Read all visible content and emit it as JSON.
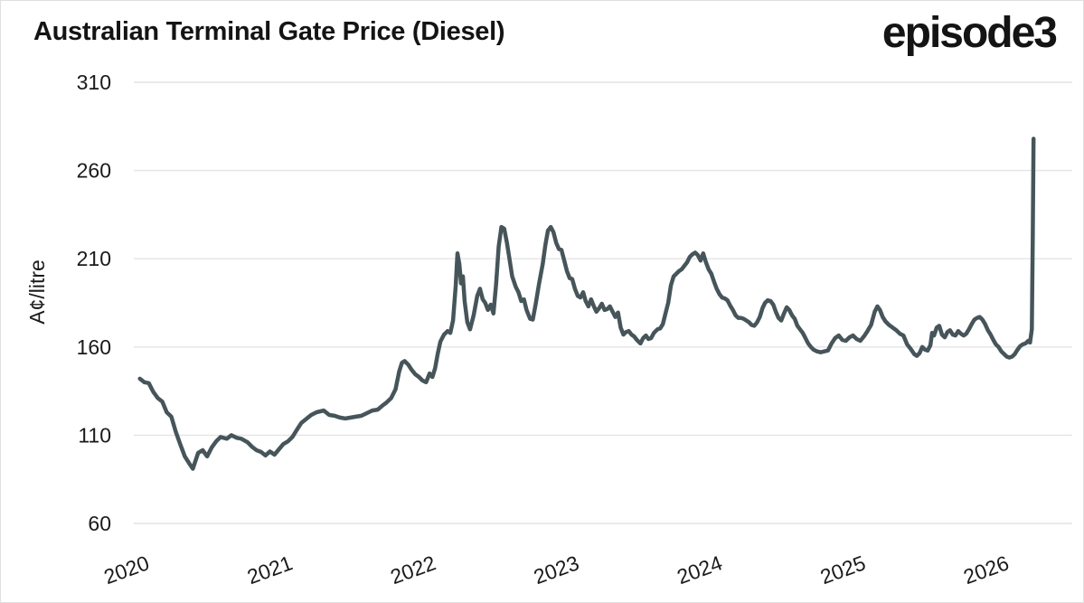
{
  "header": {
    "title": "Australian Terminal Gate Price (Diesel)",
    "logo": "episode3"
  },
  "chart_data": {
    "type": "line",
    "title": "Australian Terminal Gate Price (Diesel)",
    "xlabel": "",
    "ylabel": "A¢/litre",
    "x_ticks": [
      2020,
      2021,
      2022,
      2023,
      2024,
      2025,
      2026
    ],
    "y_ticks": [
      310,
      260,
      210,
      160,
      110,
      60
    ],
    "ylim": [
      60,
      310
    ],
    "xlim": [
      2019.92,
      2026.47
    ],
    "grid": "horizontal",
    "legend": "none",
    "line_color": "#46555a",
    "grid_color": "#e4e4e4",
    "text_color": "#1a1a1a",
    "points": [
      [
        2019.962,
        142
      ],
      [
        2019.994,
        140
      ],
      [
        2020.025,
        139.5
      ],
      [
        2020.056,
        134.5
      ],
      [
        2020.088,
        131
      ],
      [
        2020.119,
        129
      ],
      [
        2020.15,
        123
      ],
      [
        2020.182,
        120.5
      ],
      [
        2020.213,
        112
      ],
      [
        2020.244,
        105
      ],
      [
        2020.276,
        98
      ],
      [
        2020.307,
        94
      ],
      [
        2020.332,
        91
      ],
      [
        2020.369,
        100
      ],
      [
        2020.401,
        101.5
      ],
      [
        2020.432,
        98
      ],
      [
        2020.463,
        103
      ],
      [
        2020.495,
        106.5
      ],
      [
        2020.526,
        109
      ],
      [
        2020.57,
        108
      ],
      [
        2020.601,
        110
      ],
      [
        2020.639,
        108.5
      ],
      [
        2020.67,
        108
      ],
      [
        2020.714,
        106
      ],
      [
        2020.745,
        103.5
      ],
      [
        2020.776,
        101.5
      ],
      [
        2020.808,
        100.5
      ],
      [
        2020.839,
        98.5
      ],
      [
        2020.87,
        100.8
      ],
      [
        2020.902,
        99
      ],
      [
        2020.933,
        102
      ],
      [
        2020.964,
        105
      ],
      [
        2020.996,
        106.5
      ],
      [
        2021.027,
        109
      ],
      [
        2021.058,
        113
      ],
      [
        2021.09,
        117
      ],
      [
        2021.121,
        119
      ],
      [
        2021.158,
        121.5
      ],
      [
        2021.196,
        123
      ],
      [
        2021.246,
        124
      ],
      [
        2021.284,
        121.5
      ],
      [
        2021.321,
        121
      ],
      [
        2021.359,
        120
      ],
      [
        2021.396,
        119.5
      ],
      [
        2021.434,
        120
      ],
      [
        2021.471,
        120.5
      ],
      [
        2021.509,
        121
      ],
      [
        2021.547,
        122.5
      ],
      [
        2021.584,
        124
      ],
      [
        2021.622,
        124.5
      ],
      [
        2021.659,
        127
      ],
      [
        2021.684,
        128.5
      ],
      [
        2021.716,
        131
      ],
      [
        2021.747,
        136
      ],
      [
        2021.772,
        146
      ],
      [
        2021.791,
        151
      ],
      [
        2021.81,
        152
      ],
      [
        2021.835,
        150
      ],
      [
        2021.86,
        147
      ],
      [
        2021.885,
        144.5
      ],
      [
        2021.91,
        143
      ],
      [
        2021.935,
        141
      ],
      [
        2021.96,
        140
      ],
      [
        2021.985,
        145
      ],
      [
        2022.004,
        143
      ],
      [
        2022.023,
        148
      ],
      [
        2022.041,
        156
      ],
      [
        2022.06,
        163
      ],
      [
        2022.085,
        167
      ],
      [
        2022.11,
        169
      ],
      [
        2022.129,
        168
      ],
      [
        2022.148,
        175
      ],
      [
        2022.167,
        195
      ],
      [
        2022.179,
        213
      ],
      [
        2022.192,
        207
      ],
      [
        2022.204,
        196
      ],
      [
        2022.217,
        200
      ],
      [
        2022.229,
        186
      ],
      [
        2022.248,
        174
      ],
      [
        2022.267,
        170
      ],
      [
        2022.292,
        178
      ],
      [
        2022.317,
        189
      ],
      [
        2022.336,
        193
      ],
      [
        2022.355,
        187
      ],
      [
        2022.373,
        185
      ],
      [
        2022.392,
        181
      ],
      [
        2022.411,
        184
      ],
      [
        2022.43,
        179
      ],
      [
        2022.449,
        196
      ],
      [
        2022.467,
        217
      ],
      [
        2022.486,
        228
      ],
      [
        2022.505,
        227
      ],
      [
        2022.524,
        219
      ],
      [
        2022.542,
        210
      ],
      [
        2022.561,
        200
      ],
      [
        2022.586,
        194
      ],
      [
        2022.605,
        191
      ],
      [
        2022.624,
        186
      ],
      [
        2022.643,
        187
      ],
      [
        2022.661,
        181
      ],
      [
        2022.686,
        176
      ],
      [
        2022.705,
        175.5
      ],
      [
        2022.724,
        184
      ],
      [
        2022.749,
        196
      ],
      [
        2022.774,
        207
      ],
      [
        2022.793,
        218
      ],
      [
        2022.811,
        226
      ],
      [
        2022.83,
        228
      ],
      [
        2022.849,
        225
      ],
      [
        2022.868,
        219
      ],
      [
        2022.887,
        215.5
      ],
      [
        2022.905,
        215
      ],
      [
        2022.924,
        209
      ],
      [
        2022.943,
        203
      ],
      [
        2022.962,
        199
      ],
      [
        2022.98,
        198.5
      ],
      [
        2022.999,
        193
      ],
      [
        2023.018,
        189
      ],
      [
        2023.037,
        188
      ],
      [
        2023.056,
        191
      ],
      [
        2023.074,
        186
      ],
      [
        2023.093,
        183
      ],
      [
        2023.112,
        187
      ],
      [
        2023.131,
        183
      ],
      [
        2023.149,
        180
      ],
      [
        2023.168,
        182
      ],
      [
        2023.187,
        184.5
      ],
      [
        2023.206,
        181
      ],
      [
        2023.225,
        181.5
      ],
      [
        2023.243,
        183
      ],
      [
        2023.262,
        180
      ],
      [
        2023.281,
        177
      ],
      [
        2023.3,
        179.5
      ],
      [
        2023.318,
        171
      ],
      [
        2023.337,
        167
      ],
      [
        2023.356,
        168.5
      ],
      [
        2023.375,
        169
      ],
      [
        2023.394,
        167
      ],
      [
        2023.412,
        166
      ],
      [
        2023.431,
        164
      ],
      [
        2023.456,
        162
      ],
      [
        2023.475,
        165
      ],
      [
        2023.494,
        166.5
      ],
      [
        2023.512,
        164.5
      ],
      [
        2023.531,
        165
      ],
      [
        2023.55,
        168
      ],
      [
        2023.575,
        170
      ],
      [
        2023.594,
        170.5
      ],
      [
        2023.613,
        173
      ],
      [
        2023.631,
        179
      ],
      [
        2023.65,
        185
      ],
      [
        2023.669,
        195
      ],
      [
        2023.688,
        200
      ],
      [
        2023.707,
        201.5
      ],
      [
        2023.725,
        203
      ],
      [
        2023.744,
        204
      ],
      [
        2023.763,
        206
      ],
      [
        2023.782,
        208
      ],
      [
        2023.8,
        211
      ],
      [
        2023.819,
        212.5
      ],
      [
        2023.838,
        213.5
      ],
      [
        2023.857,
        212
      ],
      [
        2023.876,
        209
      ],
      [
        2023.894,
        213
      ],
      [
        2023.913,
        208
      ],
      [
        2023.932,
        204
      ],
      [
        2023.951,
        201.5
      ],
      [
        2023.97,
        197
      ],
      [
        2023.988,
        193
      ],
      [
        2024.007,
        190
      ],
      [
        2024.026,
        188
      ],
      [
        2024.045,
        187.5
      ],
      [
        2024.063,
        186.5
      ],
      [
        2024.082,
        183.5
      ],
      [
        2024.101,
        181
      ],
      [
        2024.12,
        178
      ],
      [
        2024.139,
        176.5
      ],
      [
        2024.157,
        176.5
      ],
      [
        2024.176,
        176
      ],
      [
        2024.195,
        175
      ],
      [
        2024.214,
        174
      ],
      [
        2024.232,
        172.5
      ],
      [
        2024.251,
        172
      ],
      [
        2024.27,
        174
      ],
      [
        2024.289,
        177
      ],
      [
        2024.308,
        182
      ],
      [
        2024.326,
        185
      ],
      [
        2024.345,
        186.5
      ],
      [
        2024.364,
        186
      ],
      [
        2024.383,
        184
      ],
      [
        2024.401,
        180
      ],
      [
        2024.42,
        176.5
      ],
      [
        2024.439,
        175
      ],
      [
        2024.458,
        179
      ],
      [
        2024.477,
        182.5
      ],
      [
        2024.495,
        181
      ],
      [
        2024.514,
        178
      ],
      [
        2024.533,
        176
      ],
      [
        2024.552,
        172
      ],
      [
        2024.57,
        170
      ],
      [
        2024.589,
        168
      ],
      [
        2024.608,
        165
      ],
      [
        2024.627,
        162
      ],
      [
        2024.646,
        160
      ],
      [
        2024.664,
        158.5
      ],
      [
        2024.689,
        157.5
      ],
      [
        2024.714,
        157
      ],
      [
        2024.739,
        157.5
      ],
      [
        2024.765,
        158
      ],
      [
        2024.79,
        162
      ],
      [
        2024.815,
        165
      ],
      [
        2024.84,
        166.5
      ],
      [
        2024.865,
        164
      ],
      [
        2024.89,
        163.5
      ],
      [
        2024.915,
        165.5
      ],
      [
        2024.94,
        166.5
      ],
      [
        2024.965,
        164.5
      ],
      [
        2024.991,
        163.5
      ],
      [
        2025.016,
        166
      ],
      [
        2025.041,
        169
      ],
      [
        2025.066,
        172.5
      ],
      [
        2025.091,
        180
      ],
      [
        2025.11,
        183
      ],
      [
        2025.128,
        181
      ],
      [
        2025.147,
        177
      ],
      [
        2025.166,
        174.5
      ],
      [
        2025.191,
        172.5
      ],
      [
        2025.216,
        171
      ],
      [
        2025.242,
        169.5
      ],
      [
        2025.267,
        167.5
      ],
      [
        2025.292,
        166.5
      ],
      [
        2025.317,
        161.5
      ],
      [
        2025.342,
        159
      ],
      [
        2025.367,
        156
      ],
      [
        2025.385,
        155
      ],
      [
        2025.404,
        156.5
      ],
      [
        2025.423,
        160
      ],
      [
        2025.442,
        158.5
      ],
      [
        2025.461,
        158
      ],
      [
        2025.48,
        161
      ],
      [
        2025.492,
        168
      ],
      [
        2025.505,
        166.5
      ],
      [
        2025.524,
        171
      ],
      [
        2025.542,
        172
      ],
      [
        2025.561,
        167
      ],
      [
        2025.58,
        165.5
      ],
      [
        2025.599,
        168.5
      ],
      [
        2025.617,
        169.5
      ],
      [
        2025.636,
        167
      ],
      [
        2025.655,
        166.5
      ],
      [
        2025.674,
        169
      ],
      [
        2025.693,
        167.5
      ],
      [
        2025.712,
        166.5
      ],
      [
        2025.73,
        167.5
      ],
      [
        2025.749,
        170
      ],
      [
        2025.768,
        173
      ],
      [
        2025.787,
        175.5
      ],
      [
        2025.806,
        176.5
      ],
      [
        2025.824,
        177
      ],
      [
        2025.843,
        175.5
      ],
      [
        2025.862,
        173
      ],
      [
        2025.881,
        169.5
      ],
      [
        2025.9,
        167
      ],
      [
        2025.919,
        164
      ],
      [
        2025.937,
        161.5
      ],
      [
        2025.956,
        160
      ],
      [
        2025.975,
        157.5
      ],
      [
        2025.994,
        156
      ],
      [
        2026.013,
        154.5
      ],
      [
        2026.031,
        154
      ],
      [
        2026.05,
        154.5
      ],
      [
        2026.069,
        156
      ],
      [
        2026.088,
        158.5
      ],
      [
        2026.107,
        160.5
      ],
      [
        2026.125,
        161.5
      ],
      [
        2026.144,
        162
      ],
      [
        2026.163,
        163.5
      ],
      [
        2026.175,
        162.5
      ],
      [
        2026.188,
        170
      ],
      [
        2026.194,
        220
      ],
      [
        2026.2,
        278
      ]
    ]
  }
}
